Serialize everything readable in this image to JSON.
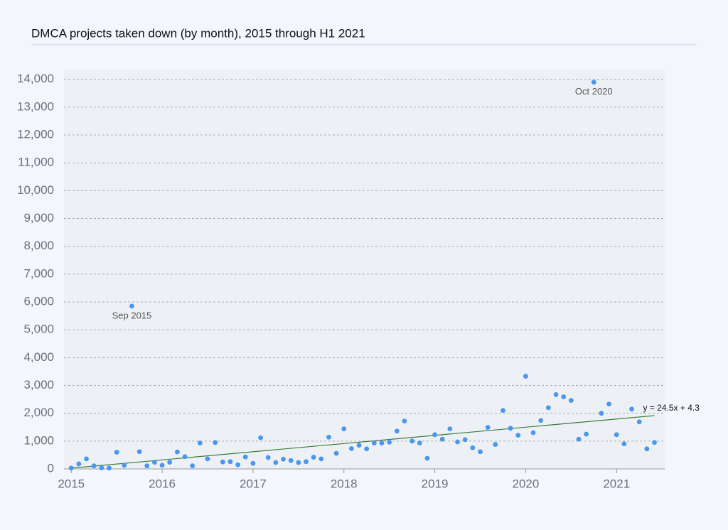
{
  "chart_data": {
    "type": "scatter",
    "title": "DMCA projects taken down (by month), 2015 through H1 2021",
    "x": [
      "2015-01",
      "2015-02",
      "2015-03",
      "2015-04",
      "2015-05",
      "2015-06",
      "2015-07",
      "2015-08",
      "2015-09",
      "2015-10",
      "2015-11",
      "2015-12",
      "2016-01",
      "2016-02",
      "2016-03",
      "2016-04",
      "2016-05",
      "2016-06",
      "2016-07",
      "2016-08",
      "2016-09",
      "2016-10",
      "2016-11",
      "2016-12",
      "2017-01",
      "2017-02",
      "2017-03",
      "2017-04",
      "2017-05",
      "2017-06",
      "2017-07",
      "2017-08",
      "2017-09",
      "2017-10",
      "2017-11",
      "2017-12",
      "2018-01",
      "2018-02",
      "2018-03",
      "2018-04",
      "2018-05",
      "2018-06",
      "2018-07",
      "2018-08",
      "2018-09",
      "2018-10",
      "2018-11",
      "2018-12",
      "2019-01",
      "2019-02",
      "2019-03",
      "2019-04",
      "2019-05",
      "2019-06",
      "2019-07",
      "2019-08",
      "2019-09",
      "2019-10",
      "2019-11",
      "2019-12",
      "2020-01",
      "2020-02",
      "2020-03",
      "2020-04",
      "2020-05",
      "2020-06",
      "2020-07",
      "2020-08",
      "2020-09",
      "2020-10",
      "2020-11",
      "2020-12",
      "2021-01",
      "2021-02",
      "2021-03",
      "2021-04",
      "2021-05",
      "2021-06"
    ],
    "values": [
      30,
      180,
      360,
      110,
      40,
      30,
      600,
      130,
      5850,
      620,
      110,
      240,
      130,
      240,
      610,
      440,
      110,
      930,
      360,
      950,
      250,
      260,
      150,
      430,
      200,
      1120,
      410,
      230,
      350,
      300,
      230,
      260,
      420,
      360,
      1140,
      560,
      1440,
      730,
      850,
      720,
      930,
      930,
      960,
      1360,
      1720,
      1000,
      930,
      380,
      1230,
      1070,
      1440,
      970,
      1050,
      760,
      620,
      1490,
      880,
      2100,
      1460,
      1210,
      3330,
      1300,
      1740,
      2200,
      2670,
      2590,
      2460,
      1070,
      1250,
      13900,
      2000,
      2330,
      1230,
      900,
      2150,
      1690,
      720,
      950
    ],
    "color": "#4b96ef",
    "xlim": [
      2014.92,
      2021.53
    ],
    "xticks": [
      2015,
      2016,
      2017,
      2018,
      2019,
      2020,
      2021
    ],
    "ylim": [
      0,
      14350
    ],
    "yticks": [
      0,
      {
        "value": 1000,
        "label": "1,000"
      },
      {
        "value": 2000,
        "label": "2,000"
      },
      {
        "value": 3000,
        "label": "3,000"
      },
      {
        "value": 4000,
        "label": "4,000"
      },
      {
        "value": 5000,
        "label": "5,000"
      },
      {
        "value": 6000,
        "label": "6,000"
      },
      {
        "value": 7000,
        "label": "7,000"
      },
      {
        "value": 8000,
        "label": "8,000"
      },
      {
        "value": 9000,
        "label": "9,000"
      },
      {
        "value": 10000,
        "label": "10,000"
      },
      {
        "value": 11000,
        "label": "11,000"
      },
      {
        "value": 12000,
        "label": "12,000"
      },
      {
        "value": 13000,
        "label": "13,000"
      },
      {
        "value": 14000,
        "label": "14,000"
      }
    ],
    "grid": true,
    "annotations": [
      {
        "text": "Sep 2015",
        "x": "2015-09"
      },
      {
        "text": "Oct 2020",
        "x": "2020-10"
      }
    ],
    "trendline": {
      "slope": 24.5,
      "intercept": 4.3,
      "label": "y = 24.5x + 4.3",
      "color": "#3c7a3c"
    }
  }
}
